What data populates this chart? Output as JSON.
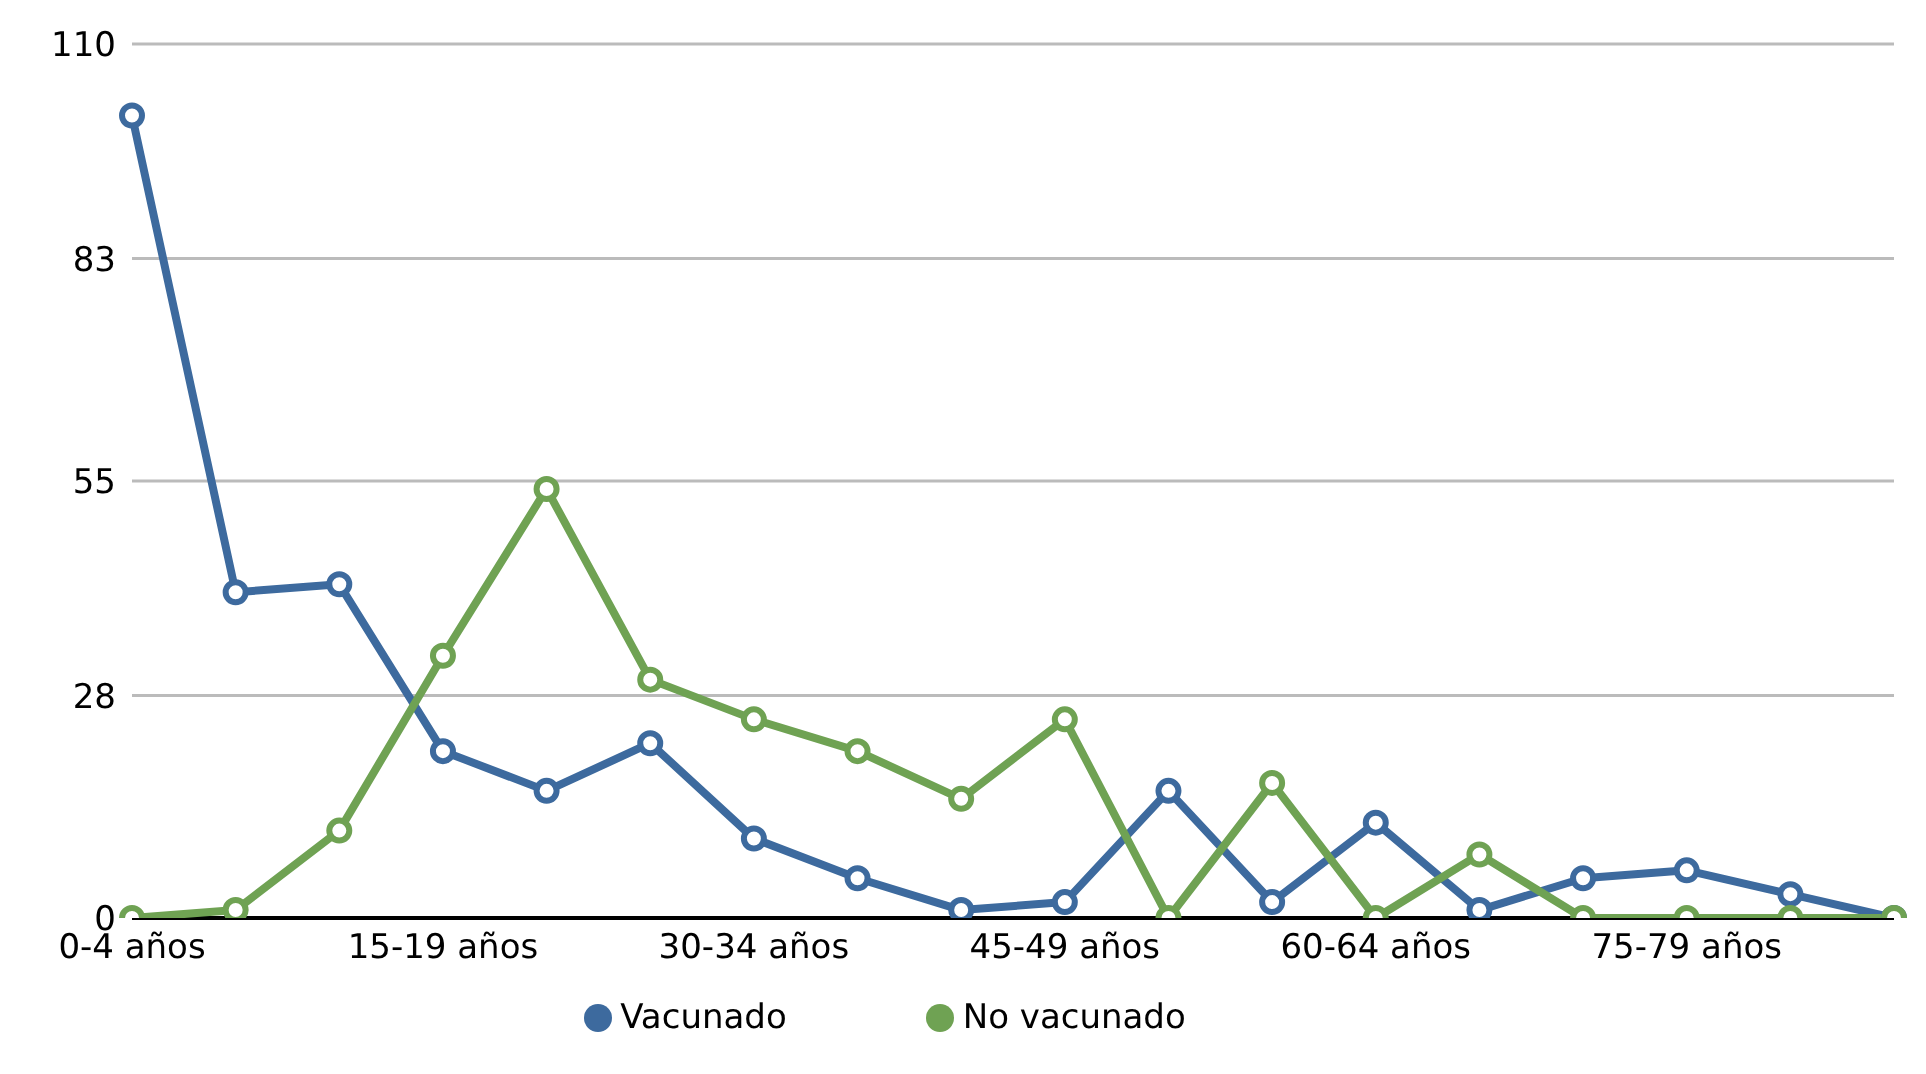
{
  "chart_data": {
    "type": "line",
    "categories": [
      "0-4 años",
      null,
      null,
      "15-19 años",
      null,
      null,
      "30-34 años",
      null,
      null,
      "45-49 años",
      null,
      null,
      "60-64 años",
      null,
      null,
      "75-79 años",
      null,
      null
    ],
    "series": [
      {
        "name": "Vacunado",
        "color": "#3d6a9e",
        "values": [
          101,
          41,
          42,
          21,
          16,
          22,
          10,
          5,
          1,
          2,
          16,
          2,
          12,
          1,
          5,
          6,
          3,
          0
        ]
      },
      {
        "name": "No vacunado",
        "color": "#6fa253",
        "values": [
          0,
          1,
          11,
          33,
          54,
          30,
          25,
          21,
          15,
          25,
          0,
          17,
          0,
          8,
          0,
          0,
          0,
          0
        ]
      }
    ],
    "ylim": [
      0,
      110
    ],
    "yticks": [
      0,
      28,
      55,
      83,
      110
    ],
    "grid": "y",
    "legend": "bottom",
    "marker": "circle"
  }
}
